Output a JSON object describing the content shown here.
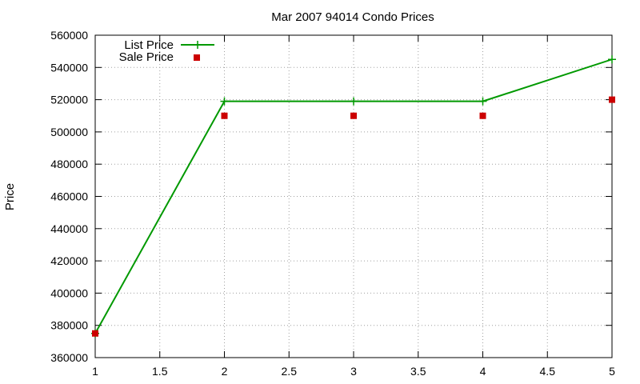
{
  "chart_data": {
    "type": "line",
    "title": "Mar 2007 94014 Condo Prices",
    "xlabel": "",
    "ylabel": "Price",
    "xlim": [
      1,
      5
    ],
    "ylim": [
      360000,
      560000
    ],
    "x_ticks": [
      "1",
      "1.5",
      "2",
      "2.5",
      "3",
      "3.5",
      "4",
      "4.5",
      "5"
    ],
    "y_ticks": [
      "360000",
      "380000",
      "400000",
      "420000",
      "440000",
      "460000",
      "480000",
      "500000",
      "520000",
      "540000",
      "560000"
    ],
    "grid": true,
    "legend_position": "top-left",
    "series": [
      {
        "name": "List Price",
        "style": "line-with-plus-markers",
        "color": "#009900",
        "x": [
          1,
          2,
          3,
          4,
          5
        ],
        "values": [
          375000,
          519000,
          519000,
          519000,
          545000
        ]
      },
      {
        "name": "Sale Price",
        "style": "square-markers",
        "color": "#cc0000",
        "x": [
          1,
          2,
          3,
          4,
          5
        ],
        "values": [
          375000,
          510000,
          510000,
          510000,
          520000
        ]
      }
    ]
  }
}
